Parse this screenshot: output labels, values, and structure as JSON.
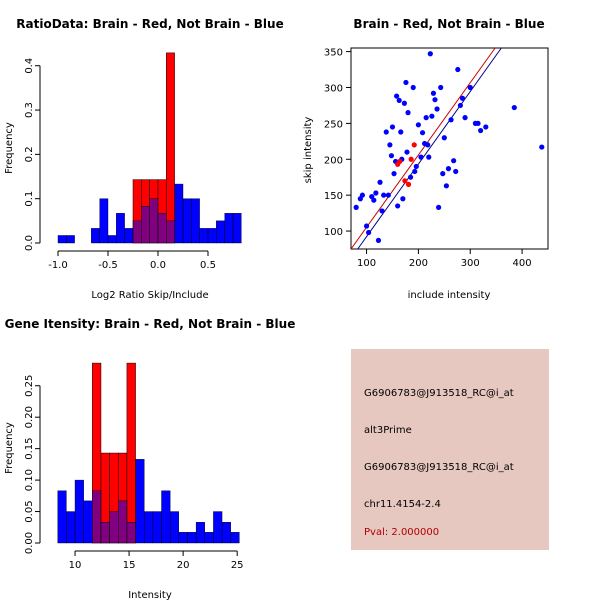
{
  "colors": {
    "red": "#ff0000",
    "blue": "#0000ff",
    "overlap": "#800080",
    "info_bg": "#e6c8c0",
    "pval_text": "#b00000",
    "line_red": "#cc0000",
    "line_blue": "#00008b"
  },
  "chart_data": [
    {
      "type": "histogram",
      "title": "RatioData: Brain - Red, Not Brain - Blue",
      "xlabel": "Log2 Ratio Skip/Include",
      "ylabel": "Frequency",
      "xlim": [
        -1.1,
        0.9
      ],
      "ylim": [
        0,
        0.44
      ],
      "xticks": [
        -1.0,
        -0.5,
        0.0,
        0.5
      ],
      "xtick_labels": [
        "-1.0",
        "-0.5",
        "0.0",
        "0.5"
      ],
      "yticks": [
        0.0,
        0.1,
        0.2,
        0.3,
        0.4
      ],
      "ytick_labels": [
        "0.0",
        "0.1",
        "0.2",
        "0.3",
        "0.4"
      ],
      "bin_width": 0.083,
      "series": [
        {
          "name": "Not Brain",
          "color": "blue",
          "bins": [
            {
              "x": -1.0,
              "value": 0.017
            },
            {
              "x": -0.917,
              "value": 0.017
            },
            {
              "x": -0.667,
              "value": 0.033
            },
            {
              "x": -0.583,
              "value": 0.1
            },
            {
              "x": -0.5,
              "value": 0.017
            },
            {
              "x": -0.417,
              "value": 0.067
            },
            {
              "x": -0.333,
              "value": 0.033
            },
            {
              "x": -0.25,
              "value": 0.05
            },
            {
              "x": -0.167,
              "value": 0.083
            },
            {
              "x": -0.083,
              "value": 0.1
            },
            {
              "x": 0.0,
              "value": 0.067
            },
            {
              "x": 0.083,
              "value": 0.05
            },
            {
              "x": 0.167,
              "value": 0.133
            },
            {
              "x": 0.25,
              "value": 0.1
            },
            {
              "x": 0.333,
              "value": 0.1
            },
            {
              "x": 0.417,
              "value": 0.033
            },
            {
              "x": 0.5,
              "value": 0.033
            },
            {
              "x": 0.583,
              "value": 0.05
            },
            {
              "x": 0.667,
              "value": 0.067
            },
            {
              "x": 0.75,
              "value": 0.067
            }
          ]
        },
        {
          "name": "Brain",
          "color": "red",
          "bins": [
            {
              "x": -0.25,
              "value": 0.143
            },
            {
              "x": -0.167,
              "value": 0.143
            },
            {
              "x": -0.083,
              "value": 0.143
            },
            {
              "x": 0.0,
              "value": 0.143
            },
            {
              "x": 0.083,
              "value": 0.429
            }
          ]
        }
      ]
    },
    {
      "type": "scatter",
      "title": "Brain - Red, Not Brain - Blue",
      "xlabel": "include intensity",
      "ylabel": "skip intensity",
      "xlim": [
        70,
        450
      ],
      "ylim": [
        75,
        355
      ],
      "xticks": [
        100,
        200,
        300,
        400
      ],
      "xtick_labels": [
        "100",
        "200",
        "300",
        "400"
      ],
      "yticks": [
        100,
        150,
        200,
        250,
        300,
        350
      ],
      "ytick_labels": [
        "100",
        "150",
        "200",
        "250",
        "300",
        "350"
      ],
      "series": [
        {
          "name": "Not Brain",
          "color": "blue",
          "points": [
            [
              80,
              133
            ],
            [
              88,
              145
            ],
            [
              92,
              150
            ],
            [
              100,
              107
            ],
            [
              104,
              98
            ],
            [
              110,
              148
            ],
            [
              114,
              143
            ],
            [
              118,
              153
            ],
            [
              123,
              87
            ],
            [
              126,
              168
            ],
            [
              130,
              128
            ],
            [
              133,
              150
            ],
            [
              138,
              238
            ],
            [
              142,
              150
            ],
            [
              145,
              220
            ],
            [
              148,
              205
            ],
            [
              150,
              245
            ],
            [
              153,
              180
            ],
            [
              156,
              197
            ],
            [
              158,
              288
            ],
            [
              160,
              135
            ],
            [
              163,
              282
            ],
            [
              166,
              238
            ],
            [
              168,
              200
            ],
            [
              170,
              145
            ],
            [
              173,
              278
            ],
            [
              176,
              307
            ],
            [
              178,
              210
            ],
            [
              180,
              265
            ],
            [
              185,
              175
            ],
            [
              190,
              300
            ],
            [
              193,
              183
            ],
            [
              196,
              190
            ],
            [
              200,
              248
            ],
            [
              205,
              203
            ],
            [
              208,
              237
            ],
            [
              212,
              222
            ],
            [
              215,
              258
            ],
            [
              218,
              220
            ],
            [
              220,
              203
            ],
            [
              223,
              347
            ],
            [
              226,
              260
            ],
            [
              229,
              292
            ],
            [
              232,
              283
            ],
            [
              236,
              270
            ],
            [
              239,
              133
            ],
            [
              243,
              300
            ],
            [
              247,
              180
            ],
            [
              250,
              230
            ],
            [
              254,
              163
            ],
            [
              258,
              187
            ],
            [
              263,
              255
            ],
            [
              268,
              198
            ],
            [
              272,
              183
            ],
            [
              276,
              325
            ],
            [
              281,
              275
            ],
            [
              285,
              285
            ],
            [
              290,
              258
            ],
            [
              300,
              300
            ],
            [
              310,
              250
            ],
            [
              315,
              250
            ],
            [
              320,
              240
            ],
            [
              330,
              245
            ],
            [
              385,
              272
            ],
            [
              438,
              217
            ]
          ]
        },
        {
          "name": "Brain",
          "color": "red",
          "points": [
            [
              160,
              193
            ],
            [
              164,
              197
            ],
            [
              174,
              170
            ],
            [
              181,
              165
            ],
            [
              186,
              200
            ],
            [
              192,
              220
            ]
          ]
        }
      ],
      "fit_lines": [
        {
          "color": "red",
          "from": [
            70,
            75
          ],
          "to": [
            348,
            355
          ]
        },
        {
          "color": "blue",
          "from": [
            83,
            75
          ],
          "to": [
            360,
            355
          ]
        }
      ]
    },
    {
      "type": "histogram",
      "title": "Gene Itensity: Brain - Red, Not Brain - Blue",
      "xlabel": "Intensity",
      "ylabel": "Frequency",
      "xlim": [
        7.5,
        26
      ],
      "ylim": [
        0,
        0.31
      ],
      "xticks": [
        10,
        15,
        20,
        25
      ],
      "xtick_labels": [
        "10",
        "15",
        "20",
        "25"
      ],
      "yticks": [
        0.0,
        0.05,
        0.1,
        0.15,
        0.2,
        0.25
      ],
      "ytick_labels": [
        "0.00",
        "0.05",
        "0.10",
        "0.15",
        "0.20",
        "0.25"
      ],
      "bin_width": 0.8,
      "series": [
        {
          "name": "Not Brain",
          "color": "blue",
          "bins": [
            {
              "x": 8.4,
              "value": 0.083
            },
            {
              "x": 9.2,
              "value": 0.05
            },
            {
              "x": 10.0,
              "value": 0.1
            },
            {
              "x": 10.8,
              "value": 0.067
            },
            {
              "x": 11.6,
              "value": 0.083
            },
            {
              "x": 12.4,
              "value": 0.033
            },
            {
              "x": 13.2,
              "value": 0.05
            },
            {
              "x": 14.0,
              "value": 0.067
            },
            {
              "x": 14.8,
              "value": 0.033
            },
            {
              "x": 15.6,
              "value": 0.133
            },
            {
              "x": 16.4,
              "value": 0.05
            },
            {
              "x": 17.2,
              "value": 0.05
            },
            {
              "x": 18.0,
              "value": 0.083
            },
            {
              "x": 18.8,
              "value": 0.05
            },
            {
              "x": 19.6,
              "value": 0.017
            },
            {
              "x": 20.4,
              "value": 0.017
            },
            {
              "x": 21.2,
              "value": 0.033
            },
            {
              "x": 22.0,
              "value": 0.017
            },
            {
              "x": 22.8,
              "value": 0.05
            },
            {
              "x": 23.6,
              "value": 0.033
            },
            {
              "x": 24.4,
              "value": 0.017
            }
          ]
        },
        {
          "name": "Brain",
          "color": "red",
          "bins": [
            {
              "x": 11.6,
              "value": 0.286
            },
            {
              "x": 12.4,
              "value": 0.143
            },
            {
              "x": 13.2,
              "value": 0.143
            },
            {
              "x": 14.0,
              "value": 0.143
            },
            {
              "x": 14.8,
              "value": 0.286
            }
          ]
        }
      ]
    }
  ],
  "info": {
    "line1": "G6906783@J913518_RC@i_at",
    "line2": "alt3Prime",
    "line3": "G6906783@J913518_RC@i_at",
    "line4": "chr11.4154-2.4",
    "pval": "Pval: 2.000000"
  }
}
